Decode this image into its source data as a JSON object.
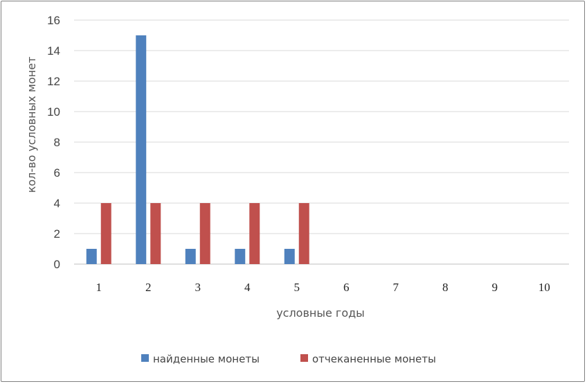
{
  "chart_data": {
    "type": "bar",
    "categories": [
      "1",
      "2",
      "3",
      "4",
      "5",
      "6",
      "7",
      "8",
      "9",
      "10"
    ],
    "series": [
      {
        "name": "найденные монеты",
        "color": "#4f81bd",
        "values": [
          1,
          15,
          1,
          1,
          1,
          null,
          null,
          null,
          null,
          null
        ]
      },
      {
        "name": "отчеканенные монеты",
        "color": "#c0504d",
        "values": [
          4,
          4,
          4,
          4,
          4,
          null,
          null,
          null,
          null,
          null
        ]
      }
    ],
    "title": "",
    "xlabel": "условные годы",
    "ylabel": "кол-во условных монет",
    "ylim": [
      0,
      16
    ],
    "yticks": [
      "0",
      "2",
      "4",
      "6",
      "8",
      "10",
      "12",
      "14",
      "16"
    ],
    "grid": true,
    "legend_position": "bottom",
    "gridline_color": "#d9d9d9"
  }
}
